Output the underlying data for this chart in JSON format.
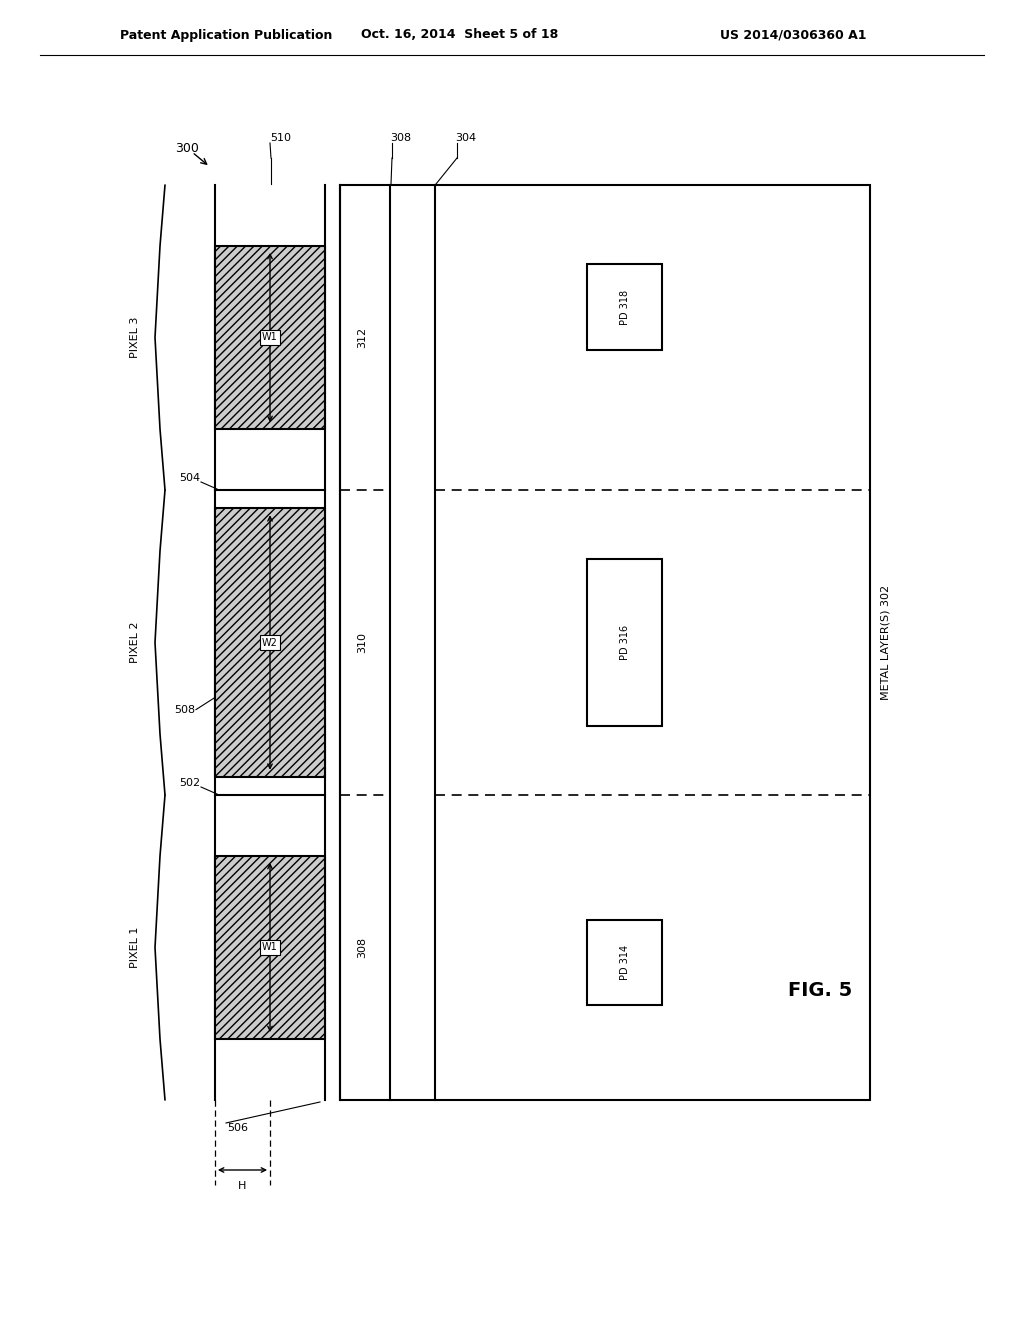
{
  "bg_color": "#ffffff",
  "header_left": "Patent Application Publication",
  "header_mid": "Oct. 16, 2014  Sheet 5 of 18",
  "header_right": "US 2014/0306360 A1",
  "fig_label": "FIG. 5",
  "ref_300": "300",
  "ref_510": "510",
  "ref_308_top": "308",
  "ref_304": "304",
  "ref_312": "312",
  "ref_310": "310",
  "ref_308_bot": "308",
  "ref_504": "504",
  "ref_508": "508",
  "ref_502": "502",
  "ref_506": "506",
  "ref_H": "H",
  "ref_pd318": "PD 318",
  "ref_pd316": "PD 316",
  "ref_pd314": "PD 314",
  "ref_metal": "METAL LAYER(S) 302",
  "pixel1": "PIXEL 1",
  "pixel2": "PIXEL 2",
  "pixel3": "PIXEL 3",
  "w1_top": "W1",
  "w2_mid": "W2",
  "w1_bot": "W1",
  "hatch_color": "#aaaaaa",
  "line_color": "#000000"
}
